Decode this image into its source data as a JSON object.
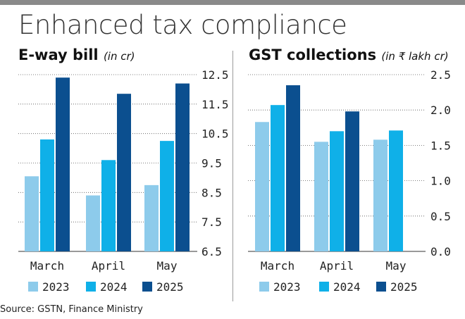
{
  "title": "Enhanced tax compliance",
  "source": "Source: GSTN, Finance Ministry",
  "colors": {
    "2023": "#8dcbeb",
    "2024": "#0fb0e8",
    "2025": "#0b4f8f",
    "topbar": "#8a8a8a"
  },
  "chart_data": [
    {
      "type": "bar",
      "title": "E-way bill",
      "unit": "(in cr)",
      "categories": [
        "March",
        "April",
        "May"
      ],
      "series": [
        {
          "name": "2023",
          "values": [
            9.05,
            8.4,
            8.75
          ]
        },
        {
          "name": "2024",
          "values": [
            10.3,
            9.6,
            10.25
          ]
        },
        {
          "name": "2025",
          "values": [
            12.4,
            11.85,
            12.2
          ]
        }
      ],
      "ylim": [
        6.5,
        12.5
      ],
      "yticks": [
        "6.5",
        "7.5",
        "8.5",
        "9.5",
        "10.5",
        "11.5",
        "12.5"
      ],
      "grid": true,
      "legend": "bottom"
    },
    {
      "type": "bar",
      "title": "GST collections",
      "unit": "(in ₹ lakh cr)",
      "categories": [
        "March",
        "April",
        "May"
      ],
      "series": [
        {
          "name": "2023",
          "values": [
            1.83,
            1.55,
            1.58
          ]
        },
        {
          "name": "2024",
          "values": [
            2.07,
            1.7,
            1.71
          ]
        },
        {
          "name": "2025",
          "values": [
            2.35,
            1.98,
            null
          ]
        }
      ],
      "ylim": [
        0,
        2.5
      ],
      "yticks": [
        "0.0",
        "0.5",
        "1.0",
        "1.5",
        "2.0",
        "2.5"
      ],
      "grid": true,
      "legend": "bottom"
    }
  ]
}
